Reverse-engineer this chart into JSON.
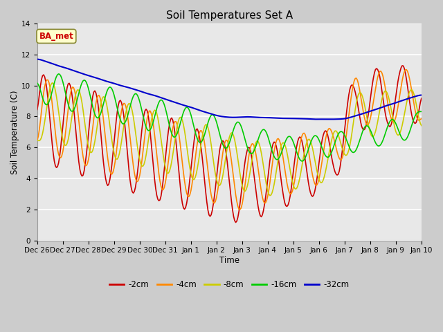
{
  "title": "Soil Temperatures Set A",
  "xlabel": "Time",
  "ylabel": "Soil Temperature (C)",
  "annotation": "BA_met",
  "ylim": [
    0,
    14
  ],
  "xlim": [
    0,
    15
  ],
  "series": {
    "-2cm": {
      "color": "#cc0000",
      "lw": 1.2
    },
    "-4cm": {
      "color": "#ff8800",
      "lw": 1.2
    },
    "-8cm": {
      "color": "#cccc00",
      "lw": 1.2
    },
    "-16cm": {
      "color": "#00cc00",
      "lw": 1.2
    },
    "-32cm": {
      "color": "#0000cc",
      "lw": 1.5
    }
  },
  "yticks": [
    0,
    2,
    4,
    6,
    8,
    10,
    12,
    14
  ],
  "tick_labels": [
    "Dec 26",
    "Dec 27",
    "Dec 28",
    "Dec 29",
    "Dec 30",
    "Dec 31",
    "Jan 1",
    "Jan 2",
    "Jan 3",
    "Jan 4",
    "Jan 5",
    "Jan 6",
    "Jan 7",
    "Jan 8",
    "Jan 9",
    "Jan 10"
  ],
  "annotation_color": "#cc0000",
  "annotation_bg": "#ffffcc",
  "annotation_edge": "#888833",
  "fig_bg": "#cccccc",
  "ax_bg": "#e8e8e8",
  "grid_color": "white"
}
